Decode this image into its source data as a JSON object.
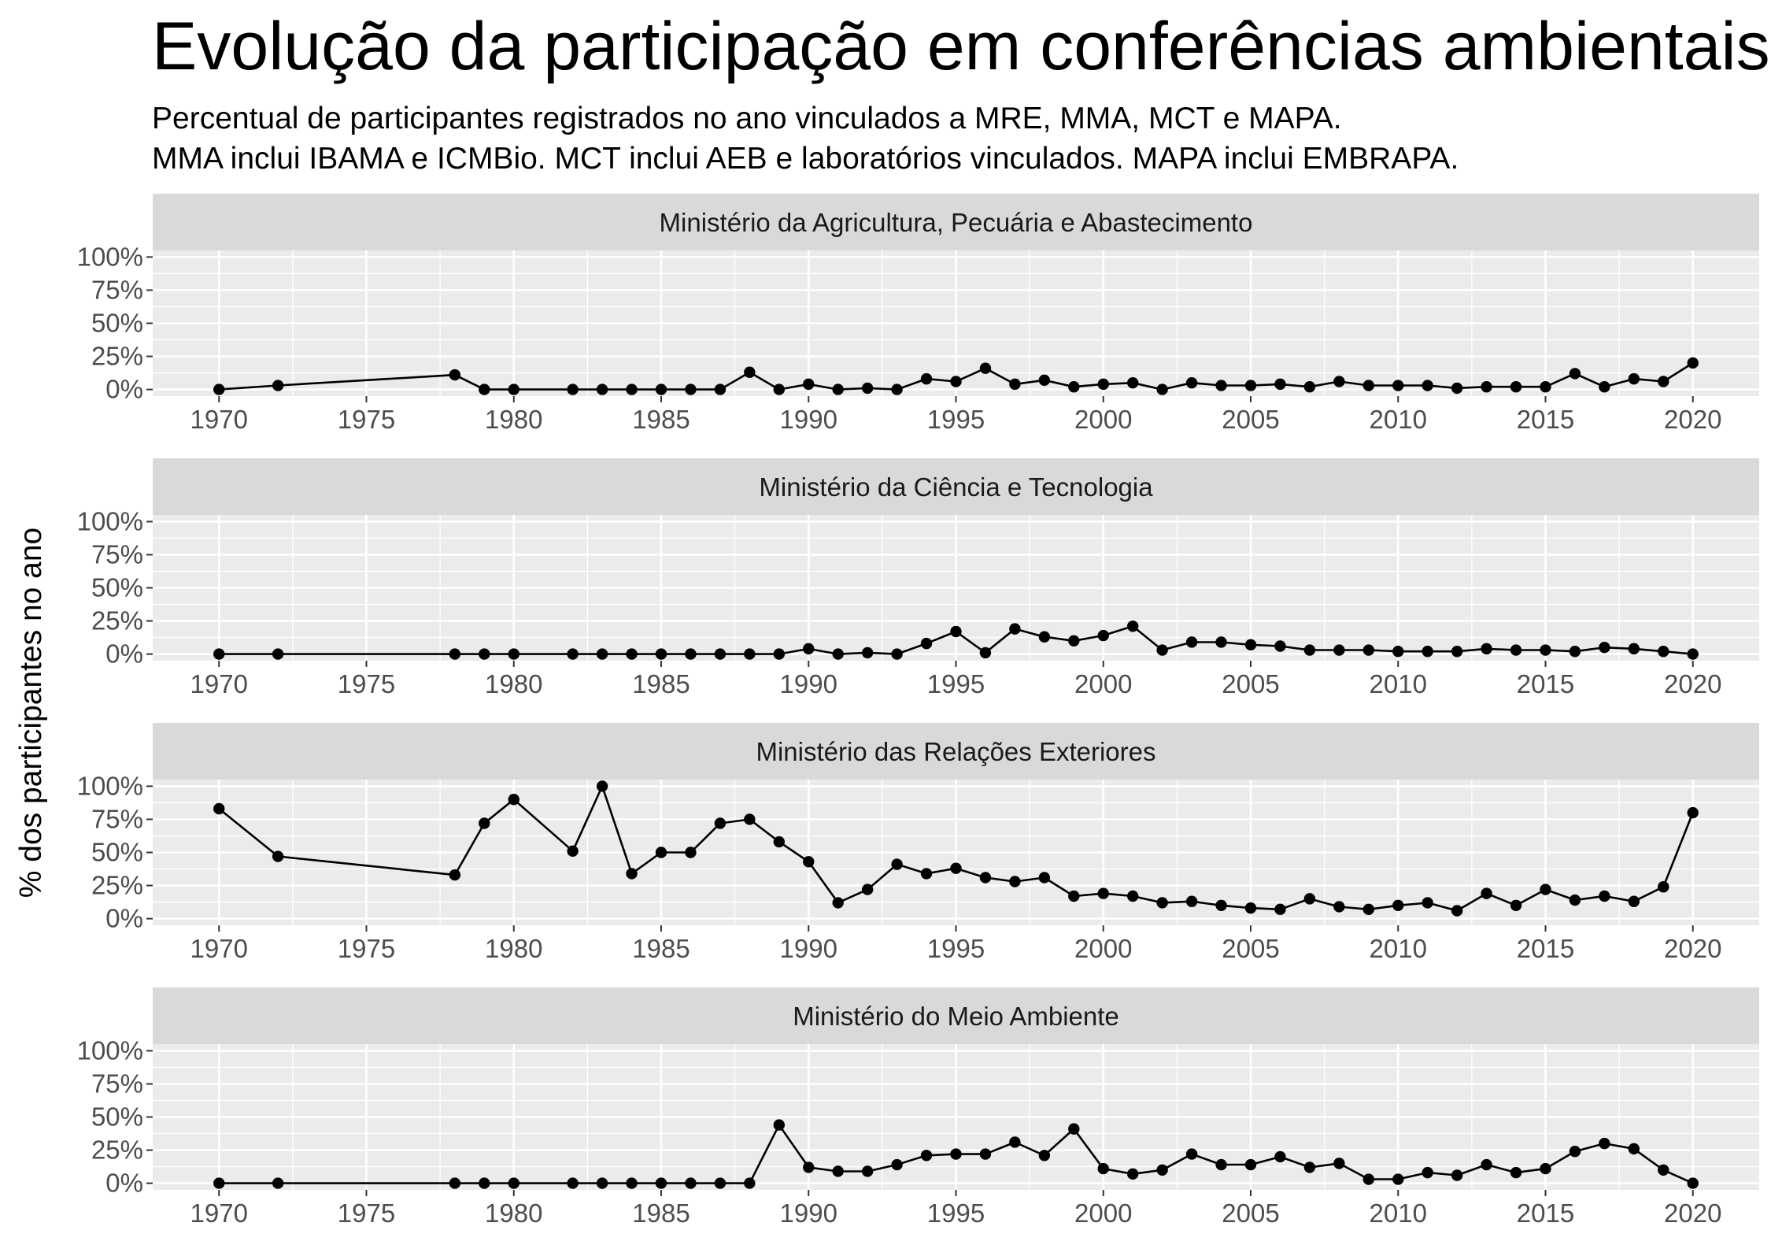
{
  "chart_data": {
    "type": "line",
    "title": "Evolução da participação em conferências ambientais",
    "subtitle_lines": [
      "Percentual de participantes registrados no ano vinculados a MRE, MMA, MCT e MAPA.",
      "MMA inclui IBAMA e ICMBio. MCT inclui AEB e laboratórios vinculados. MAPA inclui EMBRAPA."
    ],
    "xlabel": "",
    "ylabel": "% dos participantes no ano",
    "xlim": [
      1970,
      2020
    ],
    "ylim": [
      0,
      100
    ],
    "x_ticks": [
      1970,
      1975,
      1980,
      1985,
      1990,
      1995,
      2000,
      2005,
      2010,
      2015,
      2020
    ],
    "y_ticks": [
      0,
      25,
      50,
      75,
      100
    ],
    "y_tick_labels": [
      "0%",
      "25%",
      "50%",
      "75%",
      "100%"
    ],
    "grid": true,
    "x": [
      1970,
      1972,
      1978,
      1979,
      1980,
      1982,
      1983,
      1984,
      1985,
      1986,
      1987,
      1988,
      1989,
      1990,
      1991,
      1992,
      1993,
      1994,
      1995,
      1996,
      1997,
      1998,
      1999,
      2000,
      2001,
      2002,
      2003,
      2004,
      2005,
      2006,
      2007,
      2008,
      2009,
      2010,
      2011,
      2012,
      2013,
      2014,
      2015,
      2016,
      2017,
      2018,
      2019,
      2020
    ],
    "series": [
      {
        "name": "Ministério da Agricultura, Pecuária e Abastecimento",
        "values": [
          0,
          3,
          11,
          0,
          0,
          0,
          0,
          0,
          0,
          0,
          0,
          13,
          0,
          4,
          0,
          1,
          0,
          8,
          6,
          16,
          4,
          7,
          2,
          4,
          5,
          0,
          5,
          3,
          3,
          4,
          2,
          6,
          3,
          3,
          3,
          1,
          2,
          2,
          2,
          12,
          2,
          8,
          6,
          20
        ]
      },
      {
        "name": "Ministério da Ciência e Tecnologia",
        "values": [
          0,
          0,
          0,
          0,
          0,
          0,
          0,
          0,
          0,
          0,
          0,
          0,
          0,
          4,
          0,
          1,
          0,
          8,
          17,
          1,
          19,
          13,
          10,
          14,
          21,
          3,
          9,
          9,
          7,
          6,
          3,
          3,
          3,
          2,
          2,
          2,
          4,
          3,
          3,
          2,
          5,
          4,
          2,
          0
        ]
      },
      {
        "name": "Ministério das Relações Exteriores",
        "values": [
          83,
          47,
          33,
          72,
          90,
          51,
          100,
          34,
          50,
          50,
          72,
          75,
          58,
          43,
          12,
          22,
          41,
          34,
          38,
          31,
          28,
          31,
          17,
          19,
          17,
          12,
          13,
          10,
          8,
          7,
          15,
          9,
          7,
          10,
          12,
          6,
          19,
          10,
          22,
          14,
          17,
          13,
          24,
          80
        ]
      },
      {
        "name": "Ministério do Meio Ambiente",
        "values": [
          0,
          0,
          0,
          0,
          0,
          0,
          0,
          0,
          0,
          0,
          0,
          0,
          44,
          12,
          9,
          9,
          14,
          21,
          22,
          22,
          31,
          21,
          41,
          11,
          7,
          10,
          22,
          14,
          14,
          20,
          12,
          15,
          3,
          3,
          8,
          6,
          14,
          8,
          11,
          24,
          30,
          26,
          10,
          0
        ]
      }
    ],
    "colors": {
      "panel_background": "#ebebeb",
      "strip_background": "#d9d9d9",
      "gridline": "#ffffff",
      "line": "#000000",
      "point": "#000000",
      "tick_text": "#4d4d4d"
    }
  }
}
